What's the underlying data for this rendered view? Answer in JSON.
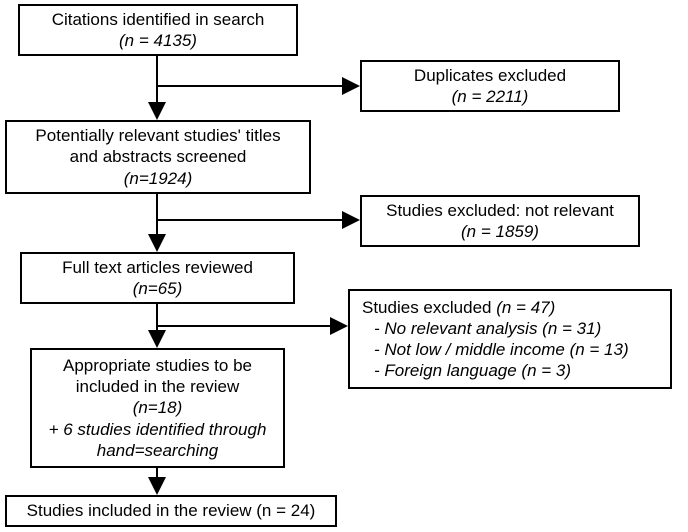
{
  "type": "flowchart",
  "background_color": "#ffffff",
  "border_color": "#000000",
  "border_width": 2,
  "font_family": "Arial",
  "font_size": 17,
  "arrow_width": 2,
  "nodes": {
    "citations": {
      "line1": "Citations identified in search",
      "line2": "(n = 4135)"
    },
    "duplicates": {
      "line1": "Duplicates excluded",
      "line2": "(n = 2211)"
    },
    "screened": {
      "line1": "Potentially relevant studies' titles",
      "line2": "and abstracts screened",
      "line3": "(n=1924)"
    },
    "not_relevant": {
      "line1": "Studies excluded: not relevant",
      "line2": "(n = 1859)"
    },
    "fulltext": {
      "line1": "Full text articles reviewed",
      "line2": "(n=65)"
    },
    "excluded47": {
      "line1": "Studies excluded (n = 47)",
      "line2": "- No relevant analysis (n = 31)",
      "line3": "- Not low / middle income (n = 13)",
      "line4": "- Foreign language (n = 3)"
    },
    "appropriate": {
      "line1": "Appropriate studies to be",
      "line2": "included in the review",
      "line3": "(n=18)",
      "line4": "+ 6 studies identified through",
      "line5": "hand=searching"
    },
    "final": {
      "line1": "Studies included in the review (n = 24)"
    }
  }
}
